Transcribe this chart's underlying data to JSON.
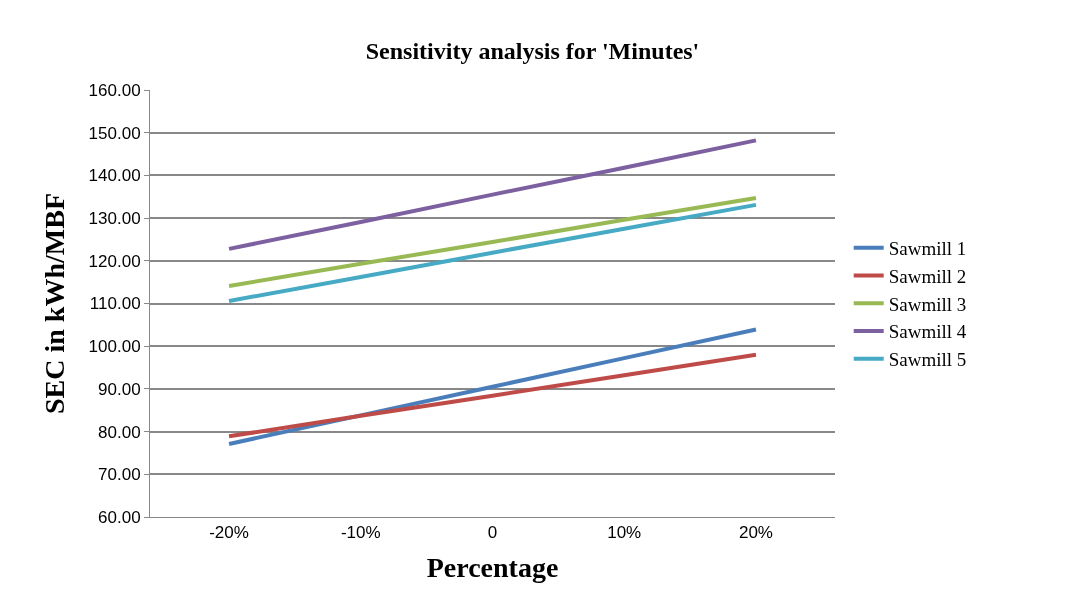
{
  "chart_data": {
    "type": "line",
    "title": "Sensitivity analysis for 'Minutes'",
    "xlabel": "Percentage",
    "ylabel": "SEC in kWh/MBF",
    "categories": [
      "-20%",
      "-10%",
      "0",
      "10%",
      "20%"
    ],
    "series": [
      {
        "name": "Sawmill 1",
        "color": "#4a7ebb",
        "values": [
          77.1,
          83.8,
          90.5,
          97.2,
          103.9
        ]
      },
      {
        "name": "Sawmill 2",
        "color": "#be4b48",
        "values": [
          78.9,
          83.7,
          88.4,
          93.2,
          98.0
        ]
      },
      {
        "name": "Sawmill 3",
        "color": "#98b954",
        "values": [
          114.1,
          119.3,
          124.4,
          129.6,
          134.7
        ]
      },
      {
        "name": "Sawmill 4",
        "color": "#7d60a0",
        "values": [
          122.8,
          129.1,
          135.5,
          141.8,
          148.2
        ]
      },
      {
        "name": "Sawmill 5",
        "color": "#46aac5",
        "values": [
          110.6,
          116.2,
          121.9,
          127.5,
          133.1
        ]
      }
    ],
    "ylim": [
      60,
      160
    ],
    "yticks": [
      {
        "value": 60,
        "label": "60.00"
      },
      {
        "value": 70,
        "label": "70.00"
      },
      {
        "value": 80,
        "label": "80.00"
      },
      {
        "value": 90,
        "label": "90.00"
      },
      {
        "value": 100,
        "label": "100.00"
      },
      {
        "value": 110,
        "label": "110.00"
      },
      {
        "value": 120,
        "label": "120.00"
      },
      {
        "value": 130,
        "label": "130.00"
      },
      {
        "value": 140,
        "label": "140.00"
      },
      {
        "value": 150,
        "label": "150.00"
      },
      {
        "value": 160,
        "label": "160.00"
      }
    ],
    "grid": "y",
    "legend": "right",
    "marker": "none",
    "line_style": "solid"
  }
}
